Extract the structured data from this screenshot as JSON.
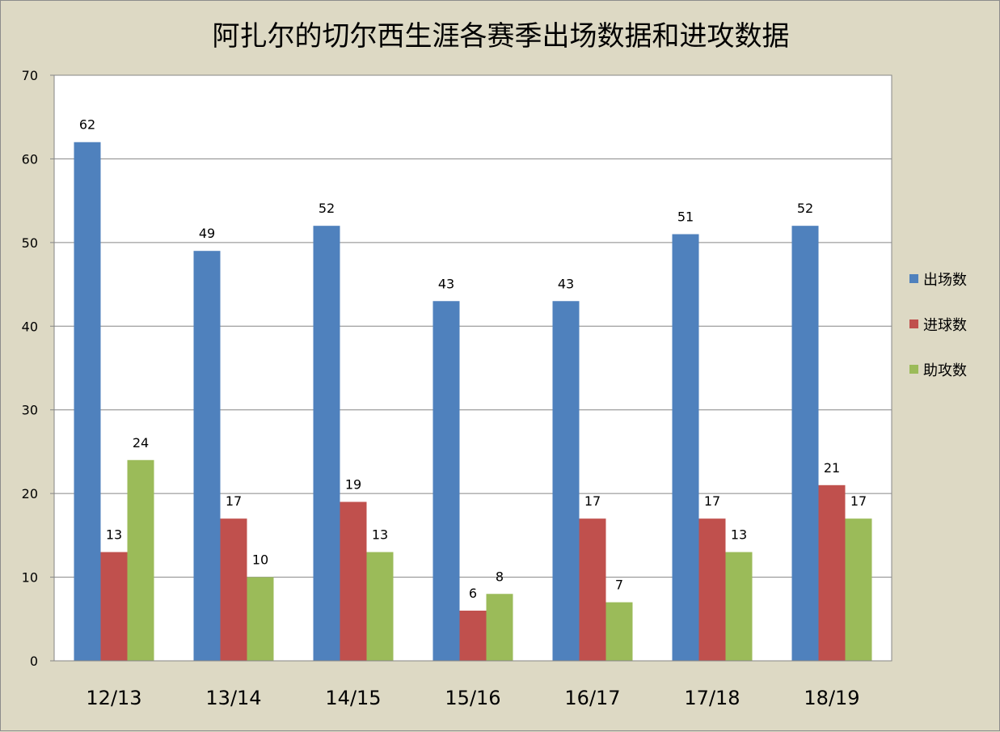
{
  "chart_data": {
    "type": "bar",
    "title": "阿扎尔的切尔西生涯各赛季出场数据和进攻数据",
    "categories": [
      "12/13",
      "13/14",
      "14/15",
      "15/16",
      "16/17",
      "17/18",
      "18/19"
    ],
    "series": [
      {
        "name": "出场数",
        "color": "#4f81bd",
        "values": [
          62,
          49,
          52,
          43,
          43,
          51,
          52
        ]
      },
      {
        "name": "进球数",
        "color": "#c0504d",
        "values": [
          13,
          17,
          19,
          6,
          17,
          17,
          21
        ]
      },
      {
        "name": "助攻数",
        "color": "#9bbb59",
        "values": [
          24,
          10,
          13,
          8,
          7,
          13,
          17
        ]
      }
    ],
    "ylim": [
      0,
      70
    ],
    "yticks": [
      0,
      10,
      20,
      30,
      40,
      50,
      60,
      70
    ],
    "grid": true,
    "legend_position": "right",
    "data_labels": true
  }
}
